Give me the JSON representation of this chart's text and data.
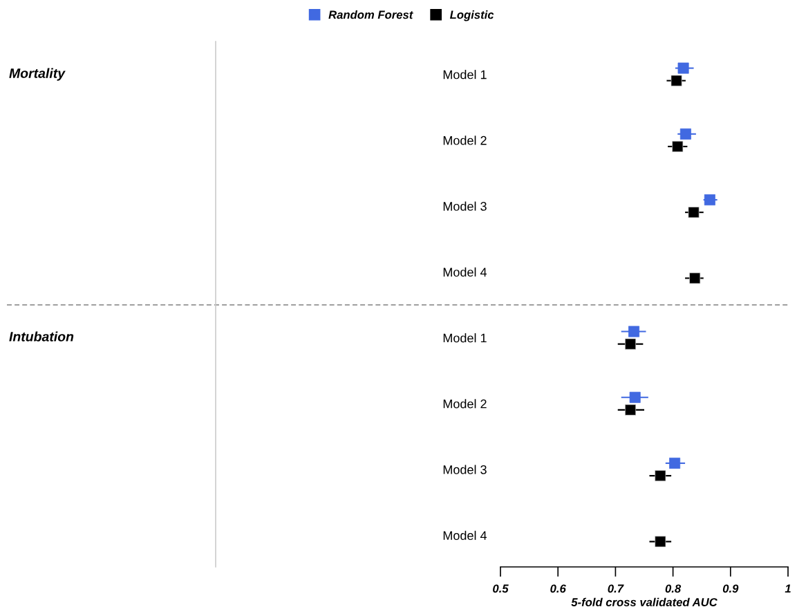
{
  "chart_data": {
    "type": "scatter",
    "orientation": "horizontal",
    "categories": [
      "Model 1",
      "Model 2",
      "Model 3",
      "Model 4",
      "Model 1",
      "Model 2",
      "Model 3",
      "Model 4"
    ],
    "series": [
      {
        "name": "Random Forest",
        "color": "#4169e1",
        "values": [
          0.818,
          0.822,
          0.864,
          null,
          0.732,
          0.734,
          0.803,
          null
        ],
        "errors": [
          [
            0.804,
            0.836
          ],
          [
            0.808,
            0.84
          ],
          [
            0.853,
            0.877
          ],
          null,
          [
            0.71,
            0.753
          ],
          [
            0.71,
            0.757
          ],
          [
            0.787,
            0.821
          ],
          null
        ]
      },
      {
        "name": "Logistic",
        "color": "#000000",
        "values": [
          0.806,
          0.808,
          0.836,
          0.838,
          0.726,
          0.726,
          0.778,
          0.778
        ],
        "errors": [
          [
            0.789,
            0.822
          ],
          [
            0.791,
            0.825
          ],
          [
            0.821,
            0.853
          ],
          [
            0.821,
            0.853
          ],
          [
            0.704,
            0.748
          ],
          [
            0.704,
            0.75
          ],
          [
            0.759,
            0.797
          ],
          [
            0.759,
            0.797
          ]
        ]
      }
    ],
    "xlabel": "5-fold cross validated AUC",
    "xlim": [
      0.5,
      1
    ],
    "xticks": [
      0.5,
      0.6,
      0.7,
      0.8,
      0.9,
      1
    ],
    "annotations": [
      "Mortality",
      "Intubation"
    ],
    "marker": "square",
    "legend": "top",
    "grid": false
  }
}
